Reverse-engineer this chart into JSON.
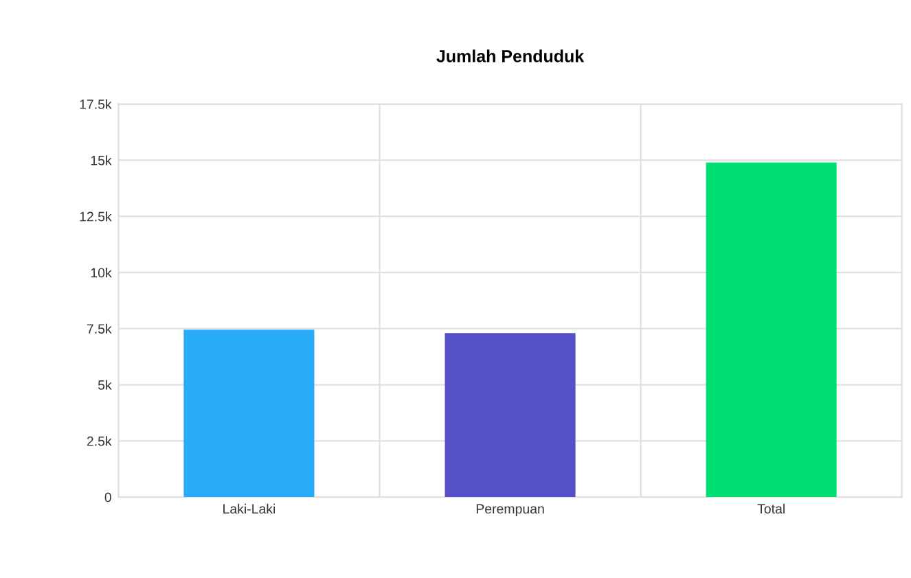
{
  "chart_data": {
    "type": "bar",
    "title": "Jumlah Penduduk",
    "categories": [
      "Laki-Laki",
      "Perempuan",
      "Total"
    ],
    "values": [
      7450,
      7300,
      14900
    ],
    "colors": [
      "#2aabf8",
      "#5650c8",
      "#00df72"
    ],
    "ylim": [
      0,
      17500
    ],
    "yticks": [
      {
        "value": 0,
        "label": "0"
      },
      {
        "value": 2500,
        "label": "2.5k"
      },
      {
        "value": 5000,
        "label": "5k"
      },
      {
        "value": 7500,
        "label": "7.5k"
      },
      {
        "value": 10000,
        "label": "10k"
      },
      {
        "value": 12500,
        "label": "12.5k"
      },
      {
        "value": 15000,
        "label": "15k"
      },
      {
        "value": 17500,
        "label": "17.5k"
      }
    ],
    "grid": true,
    "legend": false
  }
}
